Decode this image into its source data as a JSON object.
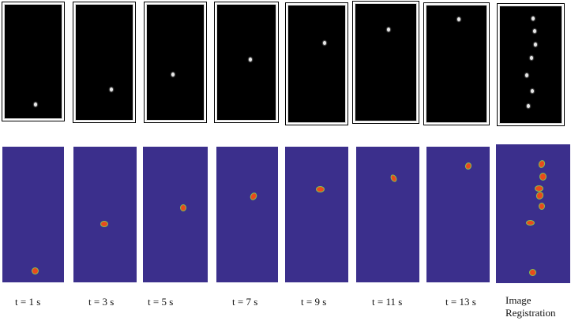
{
  "labels": [
    "t = 1 s",
    "t = 3 s",
    "t = 5 s",
    "t = 7 s",
    "t = 9 s",
    "t = 11 s",
    "t = 13 s"
  ],
  "final_label": {
    "line1": "Image",
    "line2": "Registration"
  },
  "colors": {
    "binary_background": "#000000",
    "binary_particle": "#ffffff",
    "segmented_background": "#3b2f8c",
    "segmented_particle": "#ea4a1d",
    "segmented_particle_edge": "#88c24a"
  }
}
